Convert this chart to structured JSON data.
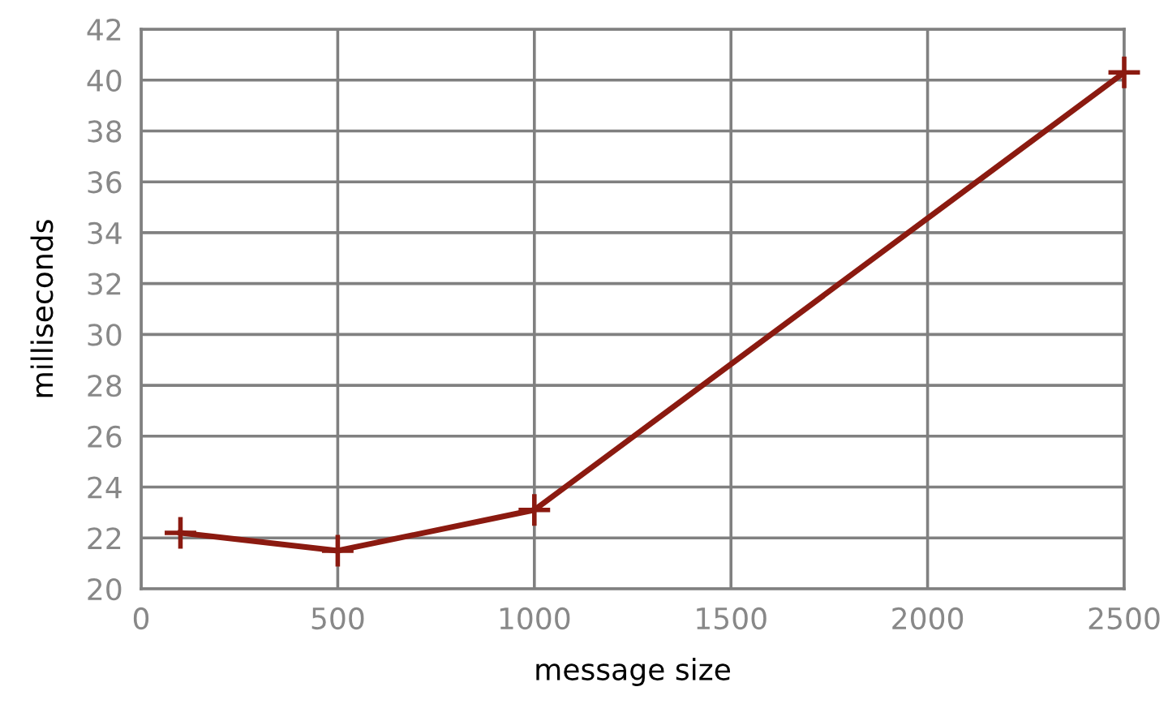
{
  "chart_data": {
    "type": "line",
    "xlabel": "message size",
    "ylabel": "milliseconds",
    "x": [
      100,
      500,
      1000,
      2500
    ],
    "series": [
      {
        "color": "#8b1a10",
        "values": [
          22.2,
          21.5,
          23.1,
          40.3
        ]
      }
    ],
    "xlim": [
      0,
      2500
    ],
    "ylim": [
      20,
      42
    ],
    "xticks": [
      0,
      500,
      1000,
      1500,
      2000,
      2500
    ],
    "yticks": [
      20,
      22,
      24,
      26,
      28,
      30,
      32,
      34,
      36,
      38,
      40,
      42
    ],
    "grid": true,
    "marker": "cross",
    "line_style": "solid"
  }
}
